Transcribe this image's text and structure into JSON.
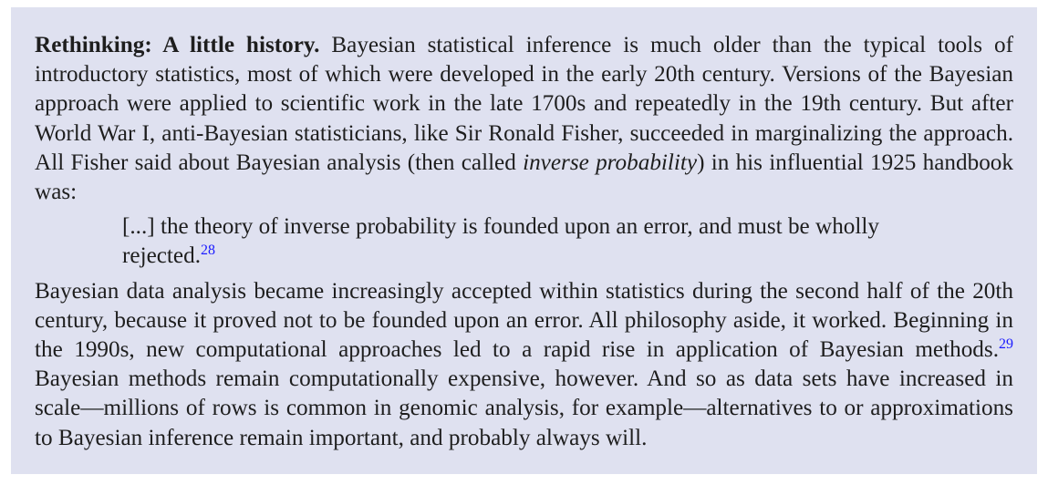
{
  "box": {
    "title": "Rethinking: A little history.",
    "p1": {
      "a": " Bayesian statistical inference is much older than the typical tools of introductory statistics, most of which were developed in the early 20th century. Versions of the Bayesian approach were applied to scientific work in the late 1700s and repeatedly in the 19th century. But after World War I, anti-Bayesian statisticians, like Sir Ronald Fisher, succeeded in marginalizing the approach. All Fisher said about Bayesian analysis (then called ",
      "italic": "inverse probability",
      "b": ") in his influential 1925 handbook was:"
    },
    "quote": {
      "text": "[...] the theory of inverse probability is founded upon an error, and must be wholly rejected.",
      "footnote": "28"
    },
    "p2": {
      "a": "Bayesian data analysis became increasingly accepted within statistics during the second half of the 20th century, because it proved not to be founded upon an error. All philosophy aside, it worked. Beginning in the 1990s, new computational approaches led to a rapid rise in application of Bayesian methods.",
      "footnote": "29",
      "b": " Bayesian methods remain computationally expensive, however. And so as data sets have increased in scale—millions of rows is common in genomic analysis, for example—alternatives to or approximations to Bayesian inference remain important, and probably always will."
    }
  }
}
